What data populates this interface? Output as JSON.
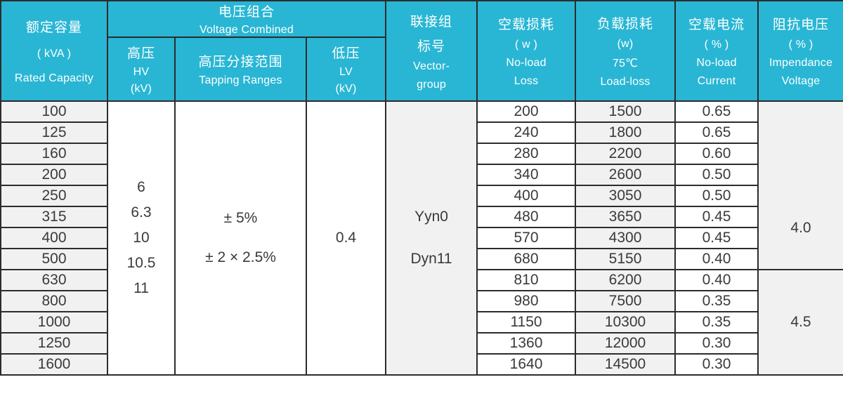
{
  "colors": {
    "header_bg": "#29b6d4",
    "header_text": "#ffffff",
    "shade_cell": "#f1f1f1",
    "plain_cell": "#ffffff",
    "border": "#2c2c2c",
    "body_text": "#3a3a3a"
  },
  "table": {
    "headers": {
      "rated_capacity": [
        "额定容量",
        "( kVA )",
        "Rated Capacity"
      ],
      "voltage_combined": [
        "电压组合",
        "Voltage Combined"
      ],
      "hv": [
        "高压",
        "HV",
        "(kV)"
      ],
      "tapping": [
        "高压分接范围",
        "Tapping Ranges"
      ],
      "lv": [
        "低压",
        "LV",
        "(kV)"
      ],
      "vector_group": [
        "联接组",
        "标号",
        "Vector-",
        "group"
      ],
      "no_load_loss": [
        "空载损耗",
        "( w )",
        "No-load",
        "Loss"
      ],
      "load_loss": [
        "负载损耗",
        "(w)",
        "75℃",
        "Load-loss"
      ],
      "no_load_current": [
        "空载电流",
        "( % )",
        "No-load",
        "Current"
      ],
      "impedance_voltage": [
        "阻抗电压",
        "( % )",
        "Impendance",
        "Voltage"
      ]
    },
    "merged": {
      "hv_values": [
        "6",
        "6.3",
        "10",
        "10.5",
        "11"
      ],
      "tapping_ranges": [
        "± 5%",
        "± 2 × 2.5%"
      ],
      "lv_value": "0.4",
      "vector_groups": [
        "Yyn0",
        "Dyn11"
      ],
      "impedance_segments": [
        {
          "value": "4.0",
          "row_span": 8
        },
        {
          "value": "4.5",
          "row_span": 5
        }
      ]
    },
    "rows": [
      {
        "capacity": "100",
        "no_load_loss": "200",
        "load_loss": "1500",
        "no_load_current": "0.65"
      },
      {
        "capacity": "125",
        "no_load_loss": "240",
        "load_loss": "1800",
        "no_load_current": "0.65"
      },
      {
        "capacity": "160",
        "no_load_loss": "280",
        "load_loss": "2200",
        "no_load_current": "0.60"
      },
      {
        "capacity": "200",
        "no_load_loss": "340",
        "load_loss": "2600",
        "no_load_current": "0.50"
      },
      {
        "capacity": "250",
        "no_load_loss": "400",
        "load_loss": "3050",
        "no_load_current": "0.50"
      },
      {
        "capacity": "315",
        "no_load_loss": "480",
        "load_loss": "3650",
        "no_load_current": "0.45"
      },
      {
        "capacity": "400",
        "no_load_loss": "570",
        "load_loss": "4300",
        "no_load_current": "0.45"
      },
      {
        "capacity": "500",
        "no_load_loss": "680",
        "load_loss": "5150",
        "no_load_current": "0.40"
      },
      {
        "capacity": "630",
        "no_load_loss": "810",
        "load_loss": "6200",
        "no_load_current": "0.40"
      },
      {
        "capacity": "800",
        "no_load_loss": "980",
        "load_loss": "7500",
        "no_load_current": "0.35"
      },
      {
        "capacity": "1000",
        "no_load_loss": "1150",
        "load_loss": "10300",
        "no_load_current": "0.35"
      },
      {
        "capacity": "1250",
        "no_load_loss": "1360",
        "load_loss": "12000",
        "no_load_current": "0.30"
      },
      {
        "capacity": "1600",
        "no_load_loss": "1640",
        "load_loss": "14500",
        "no_load_current": "0.30"
      }
    ]
  }
}
